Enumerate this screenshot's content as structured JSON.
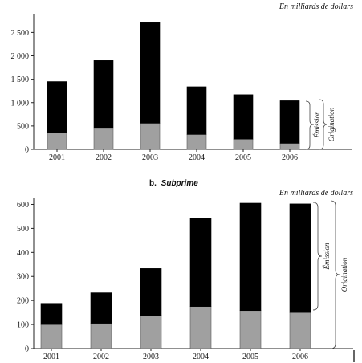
{
  "chart_data": [
    {
      "type": "bar",
      "stacked": true,
      "title": "",
      "unit_label": "En milliards de dollars",
      "categories": [
        "2001",
        "2002",
        "2003",
        "2004",
        "2005",
        "2006"
      ],
      "y_ticks": [
        "0",
        "500",
        "1 000",
        "1 500",
        "2 000",
        "2 500"
      ],
      "y_tick_values": [
        0,
        500,
        1000,
        1500,
        2000,
        2500
      ],
      "ylim": [
        0,
        2850
      ],
      "series": [
        {
          "values": [
            350,
            450,
            560,
            320,
            220,
            130
          ],
          "color": "#a0a0a0"
        },
        {
          "values": [
            1100,
            1450,
            2150,
            1020,
            950,
            910
          ],
          "color": "#000000"
        }
      ],
      "brace_labels": [
        "Émission",
        "Origination"
      ]
    },
    {
      "type": "bar",
      "stacked": true,
      "subtitle_prefix": "b.",
      "subtitle": "Subprime",
      "unit_label": "En milliards de dollars",
      "categories": [
        "2001",
        "2002",
        "2003",
        "2004",
        "2005",
        "2006"
      ],
      "y_ticks": [
        "0",
        "100",
        "200",
        "300",
        "400",
        "500",
        "600"
      ],
      "y_tick_values": [
        0,
        100,
        200,
        300,
        400,
        500,
        600
      ],
      "ylim": [
        0,
        625
      ],
      "series": [
        {
          "values": [
            100,
            105,
            138,
            175,
            158,
            150
          ],
          "color": "#a0a0a0"
        },
        {
          "values": [
            88,
            127,
            195,
            367,
            447,
            452
          ],
          "color": "#000000"
        }
      ],
      "brace_labels": [
        "Émission",
        "Origination"
      ]
    }
  ]
}
